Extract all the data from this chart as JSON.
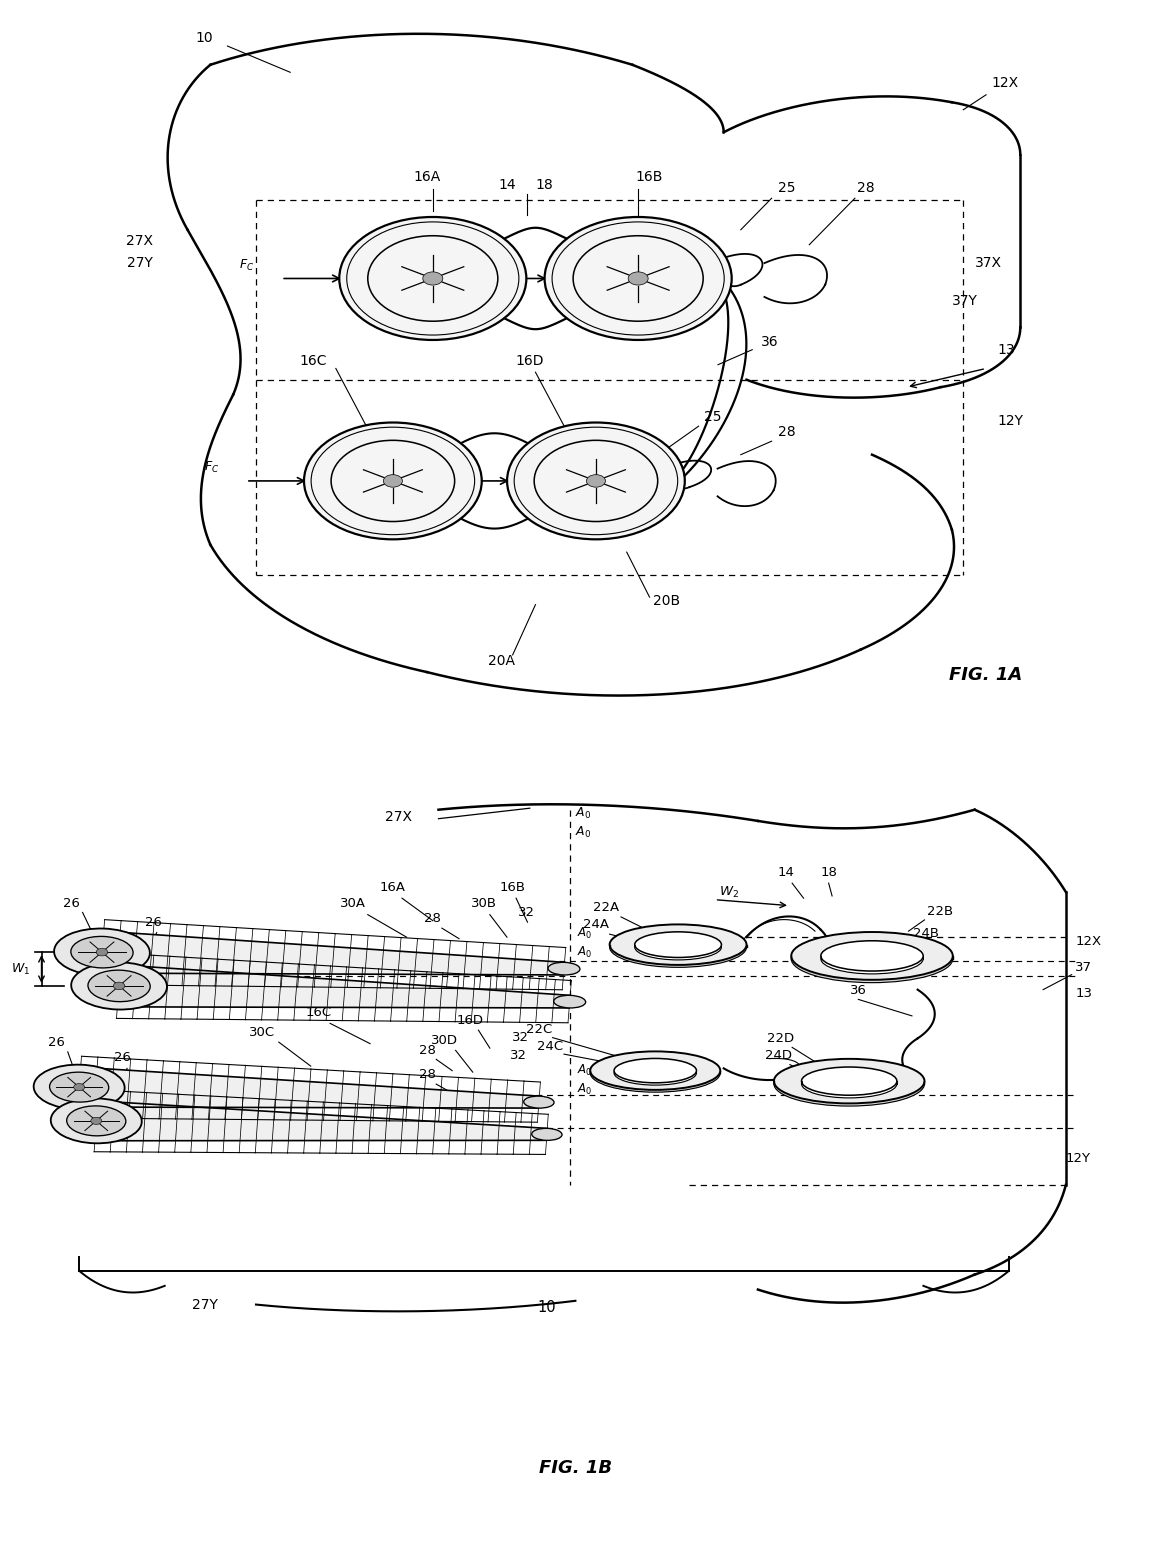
{
  "fig_width": 12.4,
  "fig_height": 16.3,
  "bg_color": "#ffffff"
}
